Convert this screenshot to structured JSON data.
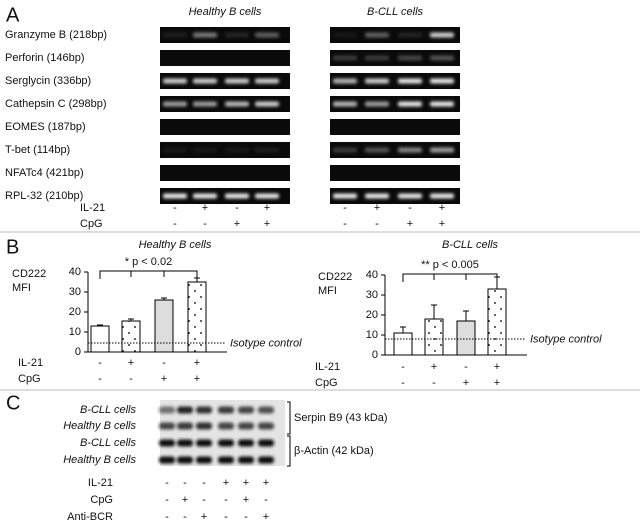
{
  "panel_a": {
    "label": "A",
    "columns": [
      "Healthy B cells",
      "B-CLL cells"
    ],
    "genes": [
      "Granzyme B (218bp)",
      "Perforin (146bp)",
      "Serglycin (336bp)",
      "Cathepsin C (298bp)",
      "EOMES (187bp)",
      "T-bet (114bp)",
      "NFATc4 (421bp)",
      "RPL-32 (210bp)"
    ],
    "conditions": [
      {
        "name": "IL-21",
        "signs": [
          "-",
          "+",
          "-",
          "+"
        ]
      },
      {
        "name": "CpG",
        "signs": [
          "-",
          "-",
          "+",
          "+"
        ]
      }
    ]
  },
  "panel_b": {
    "label": "B"
  },
  "chart_data": [
    {
      "type": "bar",
      "title": "Healthy B cells",
      "ylabel": [
        "CD222",
        "MFI"
      ],
      "values": [
        13,
        15.5,
        26,
        35
      ],
      "errors": [
        0.5,
        1,
        1,
        2
      ],
      "ylim": [
        0,
        40
      ],
      "yticks": [
        0,
        10,
        20,
        30,
        40
      ],
      "reference_line": {
        "label": "Isotype control",
        "value": 4.5
      },
      "annotation": "* p < 0.02",
      "conditions": [
        {
          "name": "IL-21",
          "signs": [
            "-",
            "+",
            "-",
            "+"
          ]
        },
        {
          "name": "CpG",
          "signs": [
            "-",
            "-",
            "+",
            "+"
          ]
        }
      ]
    },
    {
      "type": "bar",
      "title": "B-CLL cells",
      "ylabel": [
        "CD222",
        "MFI"
      ],
      "values": [
        11,
        18,
        17,
        33
      ],
      "errors": [
        3,
        7,
        5,
        6
      ],
      "ylim": [
        0,
        40
      ],
      "yticks": [
        0,
        10,
        20,
        30,
        40
      ],
      "reference_line": {
        "label": "Isotype control",
        "value": 8
      },
      "annotation": "** p < 0.005",
      "conditions": [
        {
          "name": "IL-21",
          "signs": [
            "-",
            "+",
            "-",
            "+"
          ]
        },
        {
          "name": "CpG",
          "signs": [
            "-",
            "-",
            "+",
            "+"
          ]
        }
      ]
    }
  ],
  "panel_c": {
    "label": "C",
    "rows": [
      "B-CLL cells",
      "Healthy B cells",
      "B-CLL cells",
      "Healthy B cells"
    ],
    "bands": [
      "Serpin B9 (43 kDa)",
      "β-Actin (42 kDa)"
    ],
    "conditions": [
      {
        "name": "IL-21",
        "signs": [
          "-",
          "-",
          "-",
          "+",
          "+",
          "+"
        ]
      },
      {
        "name": "CpG",
        "signs": [
          "-",
          "+",
          "-",
          "-",
          "+",
          "-"
        ]
      },
      {
        "name": "Anti-BCR",
        "signs": [
          "-",
          "-",
          "+",
          "-",
          "-",
          "+"
        ]
      }
    ]
  }
}
